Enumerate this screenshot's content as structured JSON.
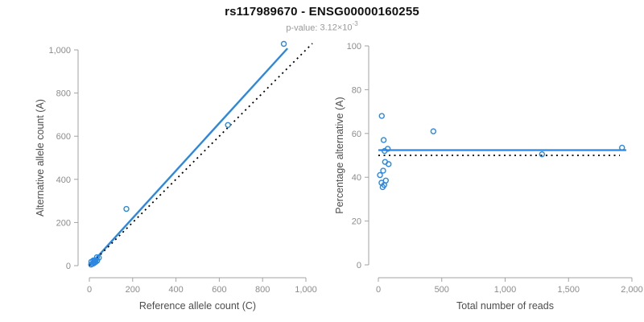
{
  "header": {
    "title": "rs117989670 - ENSG00000160255",
    "pvalue_label": "p-value:",
    "pvalue_mantissa": "3.12",
    "pvalue_base": "×10",
    "pvalue_exponent": "-3"
  },
  "colors": {
    "accent_blue": "#2b87e0",
    "identity_black": "#000000",
    "axis_gray": "#a3a3a3",
    "tick_label_gray": "#8c8c8c",
    "axis_title_gray": "#4d4d4d",
    "title_black": "#111111",
    "subtitle_gray": "#9a9a9a"
  },
  "chart_data": [
    {
      "type": "scatter",
      "name": "allele-count-scatter",
      "xlabel": "Reference allele count (C)",
      "ylabel": "Alternative allele count (A)",
      "xlim": [
        0,
        1000
      ],
      "ylim": [
        0,
        1000
      ],
      "grid": false,
      "legend": false,
      "xticks": {
        "values": [
          0,
          200,
          400,
          600,
          800,
          1000
        ],
        "labels": [
          "0",
          "200",
          "400",
          "600",
          "800",
          "1,000"
        ]
      },
      "yticks": {
        "values": [
          0,
          200,
          400,
          600,
          800,
          1000
        ],
        "labels": [
          "0",
          "200",
          "400",
          "600",
          "800",
          "1,000"
        ]
      },
      "points": [
        [
          8,
          5
        ],
        [
          9,
          18
        ],
        [
          16,
          9
        ],
        [
          18,
          24
        ],
        [
          22,
          12
        ],
        [
          22,
          16
        ],
        [
          24,
          25
        ],
        [
          28,
          25
        ],
        [
          29,
          17
        ],
        [
          35,
          39
        ],
        [
          36,
          23
        ],
        [
          44,
          37
        ],
        [
          171,
          263
        ],
        [
          640,
          652
        ],
        [
          898,
          1028
        ]
      ],
      "lines": [
        {
          "name": "fit-line",
          "style": "solid",
          "color_key": "accent_blue",
          "width": 2.4,
          "x": [
            0,
            915
          ],
          "y": [
            0,
            1007
          ]
        },
        {
          "name": "identity-line",
          "style": "dotted",
          "color_key": "identity_black",
          "width": 1.8,
          "x": [
            0,
            1030
          ],
          "y": [
            0,
            1030
          ]
        }
      ]
    },
    {
      "type": "scatter",
      "name": "percentage-reads-scatter",
      "xlabel": "Total number of reads",
      "ylabel": "Percentage alternative (A)",
      "xlim": [
        0,
        2000
      ],
      "ylim": [
        0,
        100
      ],
      "grid": false,
      "legend": false,
      "xticks": {
        "values": [
          0,
          500,
          1000,
          1500,
          2000
        ],
        "labels": [
          "0",
          "500",
          "1,000",
          "1,500",
          "2,000"
        ]
      },
      "yticks": {
        "values": [
          0,
          20,
          40,
          60,
          80,
          100
        ],
        "labels": [
          "0",
          "20",
          "40",
          "60",
          "80",
          "100"
        ]
      },
      "points": [
        [
          27,
          68
        ],
        [
          42,
          57
        ],
        [
          49,
          52
        ],
        [
          74,
          53
        ],
        [
          53,
          47
        ],
        [
          81,
          46
        ],
        [
          38,
          43
        ],
        [
          13,
          41
        ],
        [
          59,
          38.5
        ],
        [
          25,
          37.5
        ],
        [
          46,
          36.5
        ],
        [
          34,
          35.5
        ],
        [
          434,
          61
        ],
        [
          1291,
          50.5
        ],
        [
          1922,
          53.5
        ]
      ],
      "lines": [
        {
          "name": "fit-line",
          "style": "solid",
          "color_key": "accent_blue",
          "width": 2.2,
          "x": [
            0,
            1955
          ],
          "y": [
            52.4,
            52.4
          ]
        },
        {
          "name": "identity-line",
          "style": "dotted",
          "color_key": "identity_black",
          "width": 1.8,
          "x": [
            0,
            1905
          ],
          "y": [
            50,
            50
          ]
        }
      ]
    }
  ]
}
